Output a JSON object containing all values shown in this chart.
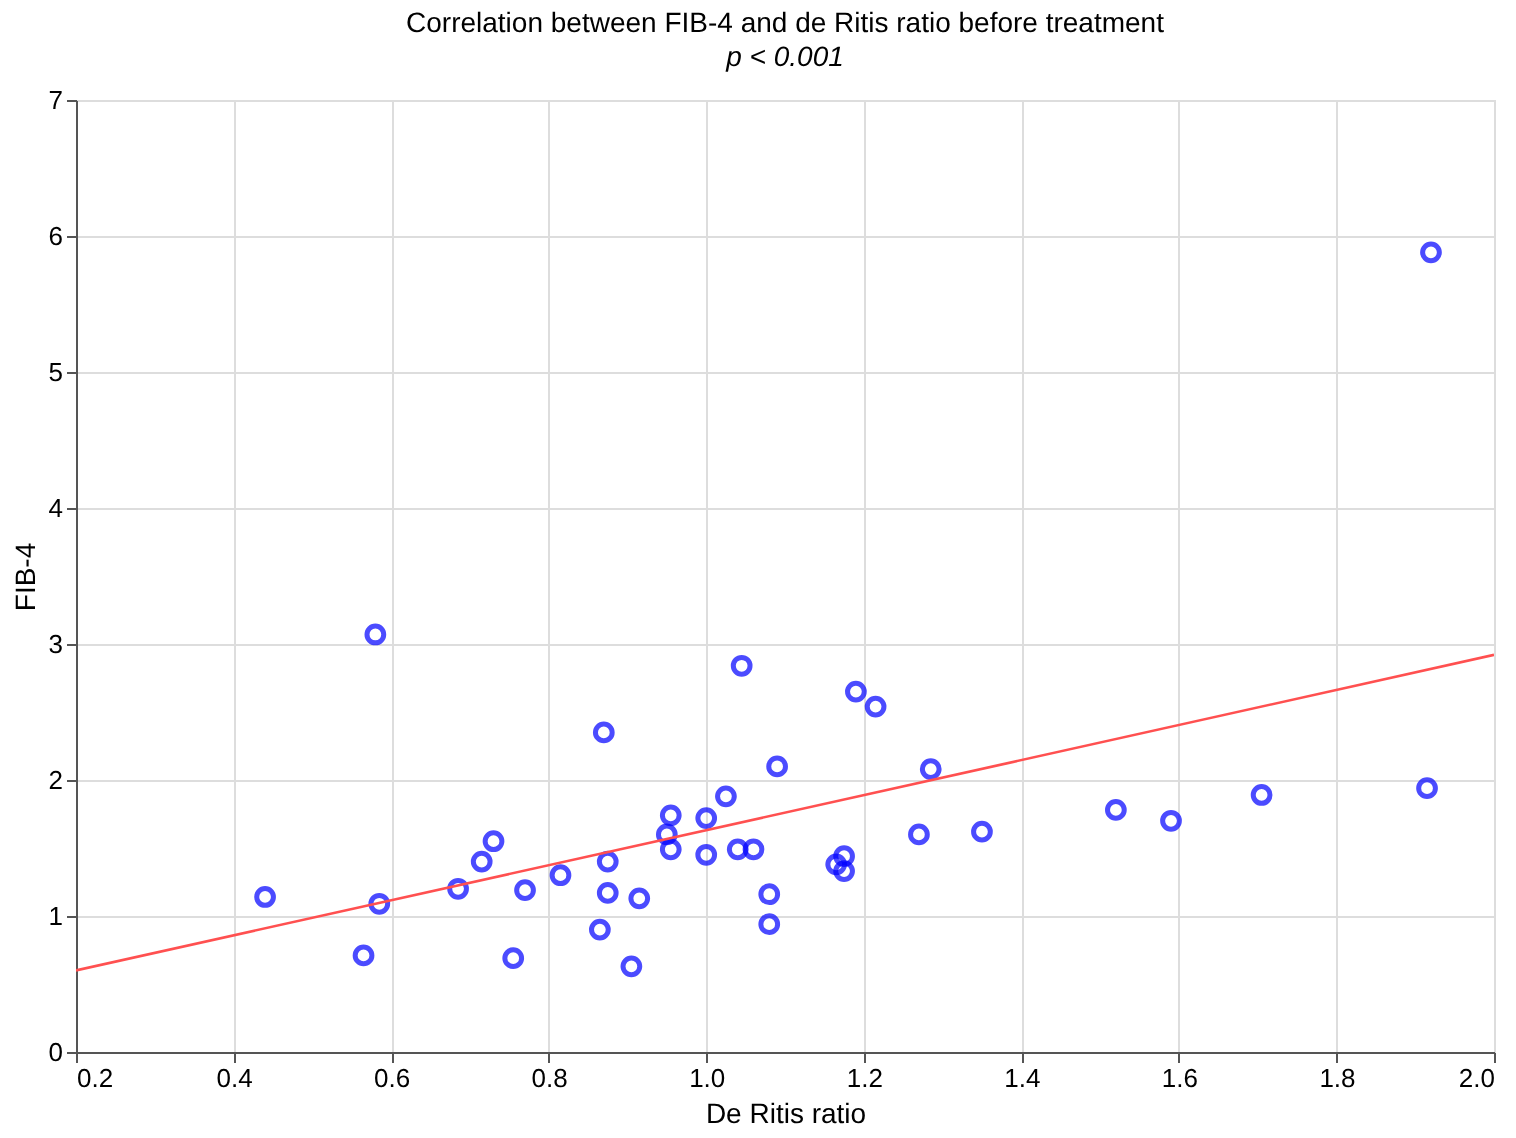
{
  "chart_data": {
    "type": "scatter",
    "title": "Correlation between FIB-4 and de Ritis ratio before treatment",
    "subtitle": "p < 0.001",
    "xlabel": "De Ritis ratio",
    "ylabel": "FIB-4",
    "xlim": [
      0.2,
      2.0
    ],
    "ylim": [
      0,
      7
    ],
    "xticks": [
      {
        "value": 0.2,
        "label": "0.2"
      },
      {
        "value": 0.4,
        "label": "0.4"
      },
      {
        "value": 0.6,
        "label": "0.6"
      },
      {
        "value": 0.8,
        "label": "0.8"
      },
      {
        "value": 1.0,
        "label": "1.0"
      },
      {
        "value": 1.2,
        "label": "1.2"
      },
      {
        "value": 1.4,
        "label": "1.4"
      },
      {
        "value": 1.6,
        "label": "1.6"
      },
      {
        "value": 1.8,
        "label": "1.8"
      },
      {
        "value": 2.0,
        "label": "2.0"
      }
    ],
    "yticks": [
      0,
      1,
      2,
      3,
      4,
      5,
      6,
      7
    ],
    "grid": true,
    "series": [
      {
        "marker": "circle",
        "color": "#0000ff",
        "x": [
          0.44,
          0.565,
          0.58,
          0.585,
          0.685,
          0.715,
          0.73,
          0.77,
          0.815,
          0.865,
          0.87,
          0.875,
          0.875,
          0.755,
          0.905,
          0.915,
          0.95,
          0.955,
          0.955,
          1.0,
          1.0,
          1.025,
          1.04,
          1.045,
          1.06,
          1.08,
          1.08,
          1.09,
          1.165,
          1.175,
          1.175,
          1.19,
          1.215,
          1.27,
          1.285,
          1.35,
          1.52,
          1.59,
          1.705,
          1.915,
          1.92
        ],
        "values": [
          1.14,
          0.71,
          3.07,
          1.09,
          1.2,
          1.4,
          1.55,
          1.19,
          1.3,
          0.9,
          2.35,
          1.17,
          1.4,
          0.69,
          0.63,
          1.13,
          1.6,
          1.49,
          1.74,
          1.72,
          1.45,
          1.88,
          1.49,
          2.84,
          1.49,
          1.16,
          0.94,
          2.1,
          1.38,
          1.44,
          1.33,
          2.65,
          2.54,
          1.6,
          2.08,
          1.62,
          1.78,
          1.7,
          1.89,
          1.94,
          5.88
        ]
      },
      {
        "type": "line",
        "color": "#ff5050",
        "x": [
          0.2,
          2.0
        ],
        "values": [
          0.6,
          2.92
        ]
      }
    ]
  }
}
